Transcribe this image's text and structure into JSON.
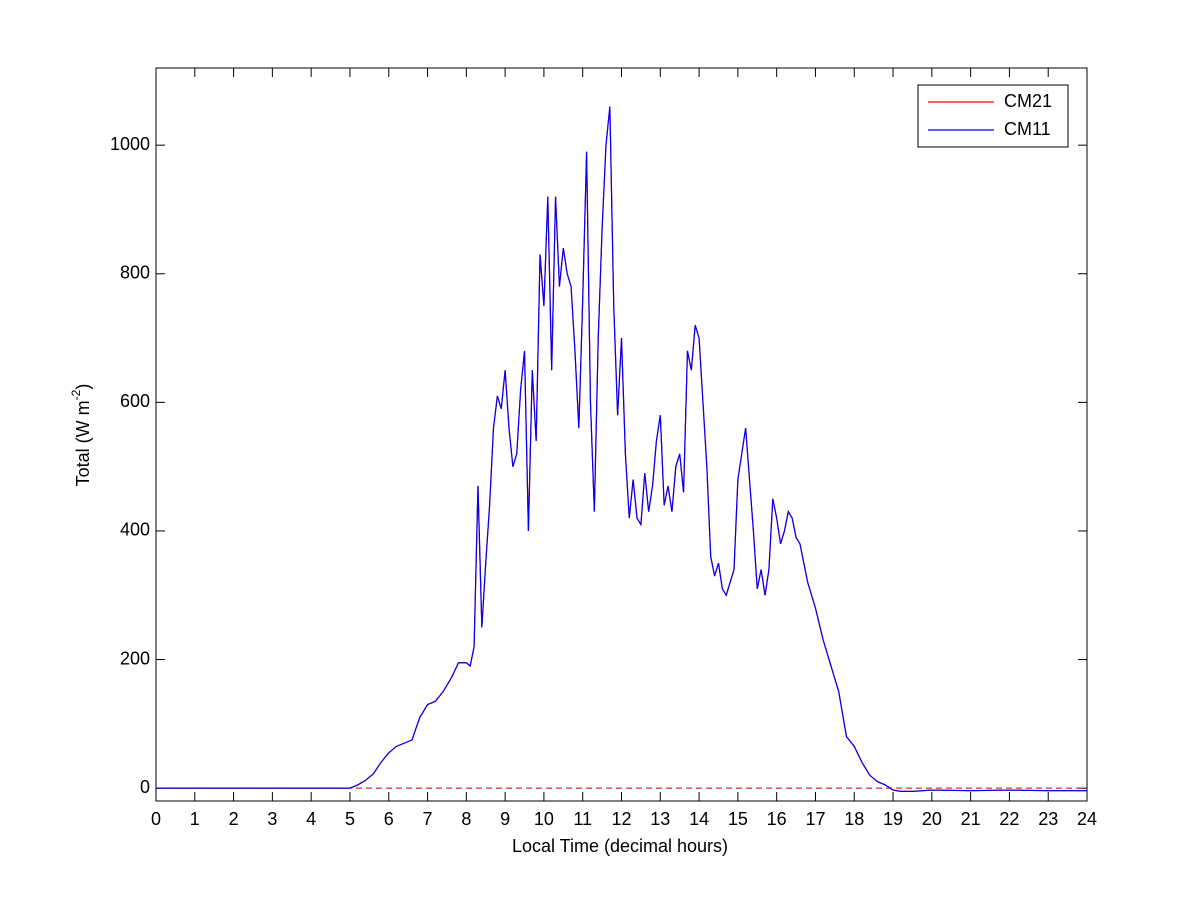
{
  "chart_data": {
    "type": "line",
    "xlabel": "Local Time (decimal hours)",
    "ylabel": {
      "text": "Total (W m",
      "superscript": "-2",
      "suffix": ")"
    },
    "x": [
      0,
      1,
      2,
      3,
      4,
      5,
      5.2,
      5.4,
      5.6,
      5.8,
      6,
      6.2,
      6.4,
      6.6,
      6.8,
      7,
      7.2,
      7.4,
      7.6,
      7.8,
      8,
      8.1,
      8.2,
      8.3,
      8.4,
      8.5,
      8.6,
      8.7,
      8.8,
      8.9,
      9,
      9.1,
      9.2,
      9.3,
      9.4,
      9.5,
      9.6,
      9.7,
      9.8,
      9.9,
      10,
      10.1,
      10.2,
      10.3,
      10.4,
      10.5,
      10.6,
      10.7,
      10.8,
      10.9,
      11,
      11.1,
      11.2,
      11.3,
      11.4,
      11.5,
      11.6,
      11.7,
      11.8,
      11.9,
      12,
      12.1,
      12.2,
      12.3,
      12.4,
      12.5,
      12.6,
      12.7,
      12.8,
      12.9,
      13,
      13.1,
      13.2,
      13.3,
      13.4,
      13.5,
      13.6,
      13.7,
      13.8,
      13.9,
      14,
      14.1,
      14.2,
      14.3,
      14.4,
      14.5,
      14.6,
      14.7,
      14.8,
      14.9,
      15,
      15.1,
      15.2,
      15.3,
      15.4,
      15.5,
      15.6,
      15.7,
      15.8,
      15.9,
      16,
      16.1,
      16.2,
      16.3,
      16.4,
      16.5,
      16.6,
      16.7,
      16.8,
      16.9,
      17,
      17.2,
      17.4,
      17.6,
      17.8,
      18,
      18.2,
      18.4,
      18.6,
      18.8,
      19,
      19.2,
      19.5,
      20,
      21,
      22,
      23,
      24
    ],
    "series": [
      {
        "name": "CM21",
        "color": "#ff0000",
        "values": [
          0,
          0,
          0,
          0,
          0,
          0,
          5,
          12,
          22,
          40,
          55,
          65,
          70,
          75,
          110,
          130,
          135,
          150,
          170,
          195,
          195,
          190,
          220,
          470,
          250,
          350,
          440,
          560,
          610,
          590,
          650,
          560,
          500,
          520,
          620,
          680,
          400,
          650,
          540,
          830,
          750,
          920,
          650,
          920,
          780,
          840,
          800,
          780,
          680,
          560,
          760,
          990,
          600,
          430,
          700,
          870,
          1000,
          1060,
          750,
          580,
          700,
          520,
          420,
          480,
          420,
          410,
          490,
          430,
          470,
          540,
          580,
          440,
          470,
          430,
          500,
          520,
          460,
          680,
          650,
          720,
          700,
          600,
          500,
          360,
          330,
          350,
          310,
          300,
          320,
          340,
          480,
          520,
          560,
          480,
          400,
          310,
          340,
          300,
          340,
          450,
          420,
          380,
          400,
          430,
          420,
          390,
          380,
          350,
          320,
          300,
          280,
          230,
          190,
          150,
          80,
          65,
          40,
          20,
          10,
          5,
          -3,
          -5,
          -5,
          -3,
          -4,
          -3,
          -4,
          -4
        ]
      },
      {
        "name": "CM11",
        "color": "#0000ff",
        "values": [
          0,
          0,
          0,
          0,
          0,
          0,
          5,
          12,
          22,
          40,
          55,
          65,
          70,
          75,
          110,
          130,
          135,
          150,
          170,
          195,
          195,
          190,
          220,
          470,
          250,
          350,
          440,
          560,
          610,
          590,
          650,
          560,
          500,
          520,
          620,
          680,
          400,
          650,
          540,
          830,
          750,
          920,
          650,
          920,
          780,
          840,
          800,
          780,
          680,
          560,
          760,
          990,
          600,
          430,
          700,
          870,
          1000,
          1060,
          750,
          580,
          700,
          520,
          420,
          480,
          420,
          410,
          490,
          430,
          470,
          540,
          580,
          440,
          470,
          430,
          500,
          520,
          460,
          680,
          650,
          720,
          700,
          600,
          500,
          360,
          330,
          350,
          310,
          300,
          320,
          340,
          480,
          520,
          560,
          480,
          400,
          310,
          340,
          300,
          340,
          450,
          420,
          380,
          400,
          430,
          420,
          390,
          380,
          350,
          320,
          300,
          280,
          230,
          190,
          150,
          80,
          65,
          40,
          20,
          10,
          5,
          -3,
          -5,
          -5,
          -3,
          -4,
          -3,
          -4,
          -4
        ]
      }
    ],
    "reference_line": {
      "value": 0,
      "color": "#cc0000",
      "style": "dashed"
    },
    "xlim": [
      0,
      24
    ],
    "xticks": [
      0,
      1,
      2,
      3,
      4,
      5,
      6,
      7,
      8,
      9,
      10,
      11,
      12,
      13,
      14,
      15,
      16,
      17,
      18,
      19,
      20,
      21,
      22,
      23,
      24
    ],
    "ylim": [
      -20,
      1120
    ],
    "yticks": [
      0,
      200,
      400,
      600,
      800,
      1000
    ],
    "grid": false,
    "legend": "upper right"
  }
}
